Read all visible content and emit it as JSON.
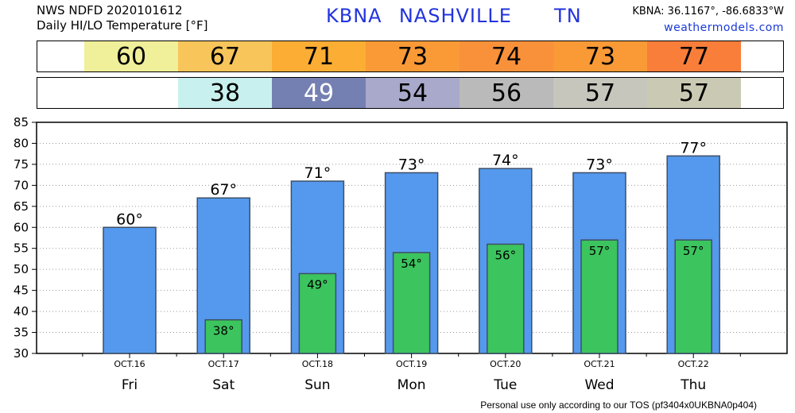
{
  "header": {
    "line1": "NWS NDFD 2020101612",
    "line2": "Daily HI/LO Temperature [°F]",
    "title": "KBNA  NASHVILLE     TN",
    "coords": "KBNA: 36.1167°, -86.6833°W",
    "site": "weathermodels.com"
  },
  "hi_strip": [
    {
      "value": "60",
      "color": "#f0ef9a"
    },
    {
      "value": "67",
      "color": "#f7c55a"
    },
    {
      "value": "71",
      "color": "#fbad34"
    },
    {
      "value": "73",
      "color": "#f99a36"
    },
    {
      "value": "74",
      "color": "#f8913a"
    },
    {
      "value": "73",
      "color": "#f99a36"
    },
    {
      "value": "77",
      "color": "#f87e3a"
    }
  ],
  "lo_strip": [
    {
      "value": "",
      "color": "#ffffff"
    },
    {
      "value": "38",
      "color": "#c8f0ee",
      "text_color": "#000000"
    },
    {
      "value": "49",
      "color": "#7580b2",
      "text_color": "#ffffff"
    },
    {
      "value": "54",
      "color": "#a9a9cb",
      "text_color": "#000000"
    },
    {
      "value": "56",
      "color": "#bababb",
      "text_color": "#000000"
    },
    {
      "value": "57",
      "color": "#c6c6bd",
      "text_color": "#000000"
    },
    {
      "value": "57",
      "color": "#cacab4",
      "text_color": "#000000"
    }
  ],
  "chart_data": {
    "type": "bar",
    "categories": [
      "Fri",
      "Sat",
      "Sun",
      "Mon",
      "Tue",
      "Wed",
      "Thu"
    ],
    "dates": [
      "OCT.16",
      "OCT.17",
      "OCT.18",
      "OCT.19",
      "OCT.20",
      "OCT.21",
      "OCT.22"
    ],
    "series": [
      {
        "values": [
          60,
          67,
          71,
          73,
          74,
          73,
          77
        ],
        "labels": [
          "60°",
          "67°",
          "71°",
          "73°",
          "74°",
          "73°",
          "77°"
        ],
        "color": "#5599ee"
      },
      {
        "values": [
          null,
          38,
          49,
          54,
          56,
          57,
          57
        ],
        "labels": [
          "",
          "38°",
          "49°",
          "54°",
          "56°",
          "57°",
          "57°"
        ],
        "color": "#3cc45e"
      }
    ],
    "ylim": [
      30,
      85
    ],
    "yticks": [
      "30",
      "35",
      "40",
      "45",
      "50",
      "55",
      "60",
      "65",
      "70",
      "75",
      "80",
      "85"
    ],
    "grid": true
  },
  "footer": "Personal use only according to our TOS (pf3404x0UKBNA0p404)"
}
